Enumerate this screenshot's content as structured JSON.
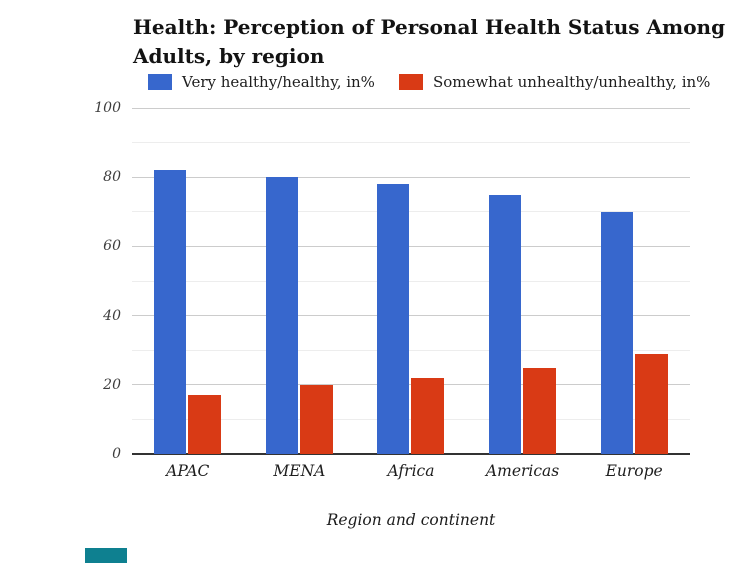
{
  "chart_data": {
    "type": "bar",
    "title": "Health: Perception of Personal Health Status Among Adults, by region",
    "title_lines": [
      "Health: Perception of Personal Health Status Among",
      "Adults, by region"
    ],
    "categories": [
      "APAC",
      "MENA",
      "Africa",
      "Americas",
      "Europe"
    ],
    "series": [
      {
        "name": "Very healthy/healthy, in%",
        "color": "#3767CD",
        "values": [
          82,
          80,
          78,
          75,
          70
        ]
      },
      {
        "name": "Somewhat unhealthy/unhealthy, in%",
        "color": "#D93A15",
        "values": [
          17,
          20,
          22,
          25,
          29
        ]
      }
    ],
    "xlabel": "Region and continent",
    "ylabel": "",
    "ylim": [
      0,
      100
    ],
    "yticks": [
      0,
      20,
      40,
      60,
      80,
      100
    ],
    "minor_gridlines": [
      10,
      30,
      50,
      70,
      90
    ],
    "grid": true,
    "legend_position": "top"
  },
  "decorations": {
    "teal_marker_color": "#0E8090"
  },
  "style_colors": {
    "major_grid": "#cccccc",
    "minor_grid": "#ededed",
    "axis_line": "#333333"
  }
}
